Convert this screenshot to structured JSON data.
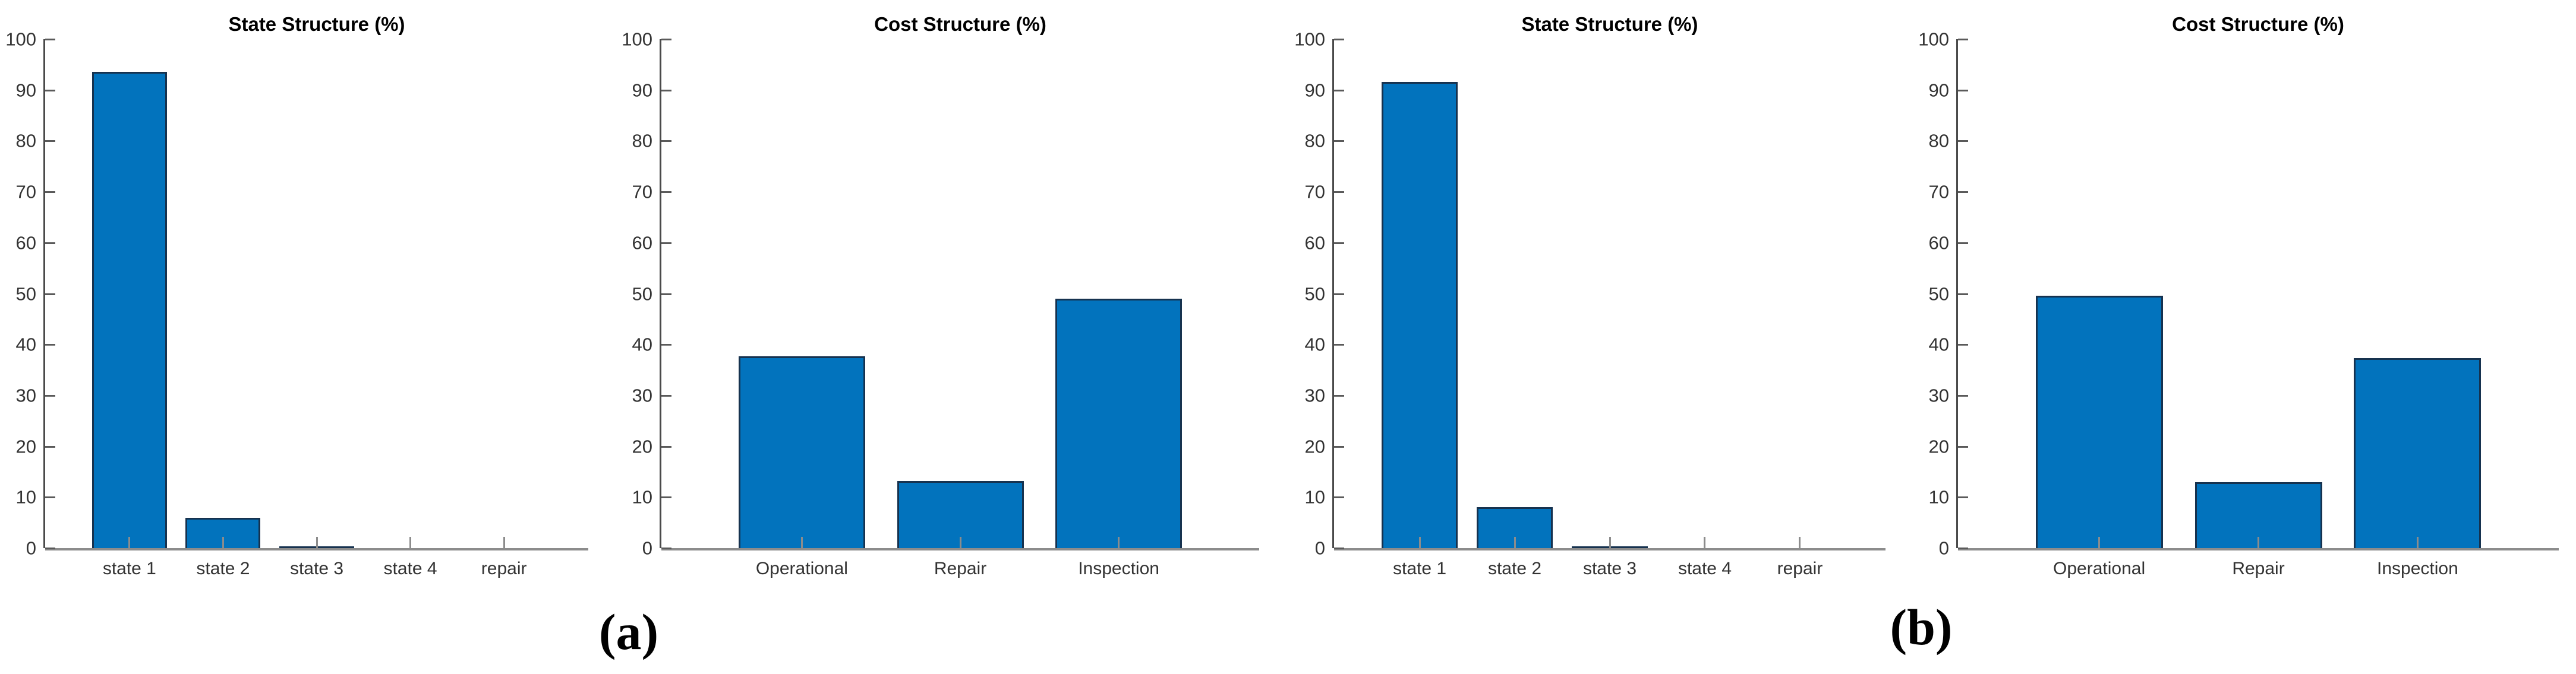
{
  "figure": {
    "background": "#ffffff",
    "description_colors": {
      "bar_fill": "#0273bd",
      "bar_edge": "#16324f",
      "y_axis_line": "#4a4a4a",
      "x_axis_line": "#8c8c8c",
      "tick_label": "#333333",
      "title": "#000000"
    }
  },
  "panels": [
    {
      "label": "(a)"
    },
    {
      "label": "(b)"
    }
  ],
  "chart_data": [
    {
      "type": "bar",
      "title": "State Structure (%)",
      "categories": [
        "state 1",
        "state 2",
        "state 3",
        "state 4",
        "repair"
      ],
      "values": [
        93.6,
        6.0,
        0.4,
        0,
        0
      ],
      "xlabel": "",
      "ylabel": "",
      "ylim": [
        0,
        100
      ],
      "yticks": [
        0,
        10,
        20,
        30,
        40,
        50,
        60,
        70,
        80,
        90,
        100
      ],
      "grid": false,
      "legend": "none",
      "layout_hints": {
        "outer_pad_frac": 0.069,
        "bar_width_frac": 0.8
      }
    },
    {
      "type": "bar",
      "title": "Cost Structure (%)",
      "categories": [
        "Operational",
        "Repair",
        "Inspection"
      ],
      "values": [
        37.7,
        13.2,
        49.0
      ],
      "xlabel": "",
      "ylabel": "",
      "ylim": [
        0,
        100
      ],
      "yticks": [
        0,
        10,
        20,
        30,
        40,
        50,
        60,
        70,
        80,
        90,
        100
      ],
      "grid": false,
      "legend": "none",
      "layout_hints": {
        "outer_pad_frac": 0.1025,
        "bar_width_frac": 0.8
      }
    },
    {
      "type": "bar",
      "title": "State Structure (%)",
      "categories": [
        "state 1",
        "state 2",
        "state 3",
        "state 4",
        "repair"
      ],
      "values": [
        91.6,
        8.0,
        0.4,
        0,
        0
      ],
      "xlabel": "",
      "ylabel": "",
      "ylim": [
        0,
        100
      ],
      "yticks": [
        0,
        10,
        20,
        30,
        40,
        50,
        60,
        70,
        80,
        90,
        100
      ],
      "grid": false,
      "legend": "none",
      "layout_hints": {
        "outer_pad_frac": 0.069,
        "bar_width_frac": 0.8
      }
    },
    {
      "type": "bar",
      "title": "Cost Structure (%)",
      "categories": [
        "Operational",
        "Repair",
        "Inspection"
      ],
      "values": [
        49.6,
        13.0,
        37.3
      ],
      "xlabel": "",
      "ylabel": "",
      "ylim": [
        0,
        100
      ],
      "yticks": [
        0,
        10,
        20,
        30,
        40,
        50,
        60,
        70,
        80,
        90,
        100
      ],
      "grid": false,
      "legend": "none",
      "layout_hints": {
        "outer_pad_frac": 0.1025,
        "bar_width_frac": 0.8
      }
    }
  ]
}
